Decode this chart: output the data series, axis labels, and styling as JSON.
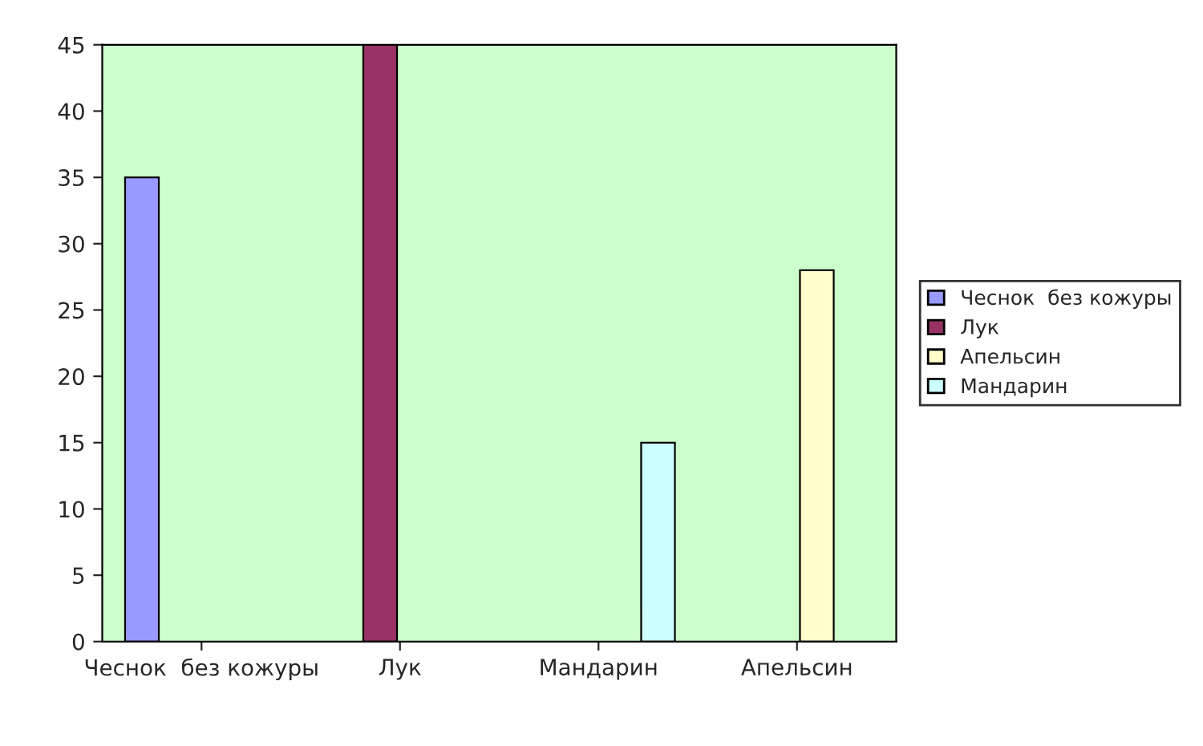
{
  "chart_data": {
    "type": "bar",
    "categories": [
      "Чеснок  без кожуры",
      "Лук",
      "Мандарин",
      "Апельсин"
    ],
    "series": [
      {
        "name": "Чеснок  без кожуры",
        "color": "#9999ff",
        "values": [
          35,
          null,
          null,
          null
        ]
      },
      {
        "name": "Лук",
        "color": "#993366",
        "values": [
          null,
          45,
          null,
          null
        ]
      },
      {
        "name": "Апельсин",
        "color": "#ffffcc",
        "values": [
          null,
          null,
          null,
          28
        ]
      },
      {
        "name": "Мандарин",
        "color": "#ccffff",
        "values": [
          null,
          null,
          15,
          null
        ]
      }
    ],
    "ylim": [
      0,
      45
    ],
    "yticks": [
      0,
      5,
      10,
      15,
      20,
      25,
      30,
      35,
      40,
      45
    ],
    "grid": false,
    "legend": "right"
  }
}
